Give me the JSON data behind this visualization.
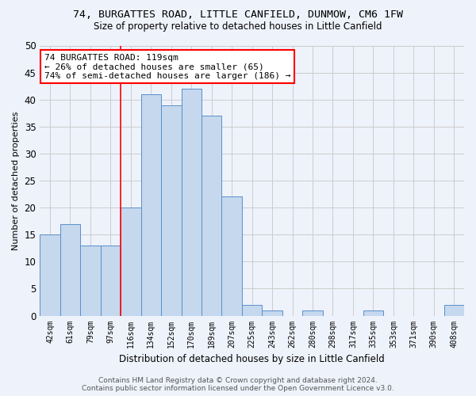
{
  "title_line1": "74, BURGATTES ROAD, LITTLE CANFIELD, DUNMOW, CM6 1FW",
  "title_line2": "Size of property relative to detached houses in Little Canfield",
  "xlabel": "Distribution of detached houses by size in Little Canfield",
  "ylabel": "Number of detached properties",
  "categories": [
    "42sqm",
    "61sqm",
    "79sqm",
    "97sqm",
    "116sqm",
    "134sqm",
    "152sqm",
    "170sqm",
    "189sqm",
    "207sqm",
    "225sqm",
    "243sqm",
    "262sqm",
    "280sqm",
    "298sqm",
    "317sqm",
    "335sqm",
    "353sqm",
    "371sqm",
    "390sqm",
    "408sqm"
  ],
  "values": [
    15,
    17,
    13,
    13,
    20,
    41,
    39,
    42,
    37,
    22,
    2,
    1,
    0,
    1,
    0,
    0,
    1,
    0,
    0,
    0,
    2
  ],
  "bar_color": "#c5d8ee",
  "bar_edge_color": "#5b8fc9",
  "grid_color": "#cccccc",
  "background_color": "#eef2fb",
  "vline_x": 3.5,
  "vline_color": "red",
  "annotation_text": "74 BURGATTES ROAD: 119sqm\n← 26% of detached houses are smaller (65)\n74% of semi-detached houses are larger (186) →",
  "annotation_box_color": "white",
  "annotation_box_edge": "red",
  "ylim": [
    0,
    50
  ],
  "yticks": [
    0,
    5,
    10,
    15,
    20,
    25,
    30,
    35,
    40,
    45,
    50
  ],
  "footer_line1": "Contains HM Land Registry data © Crown copyright and database right 2024.",
  "footer_line2": "Contains public sector information licensed under the Open Government Licence v3.0."
}
